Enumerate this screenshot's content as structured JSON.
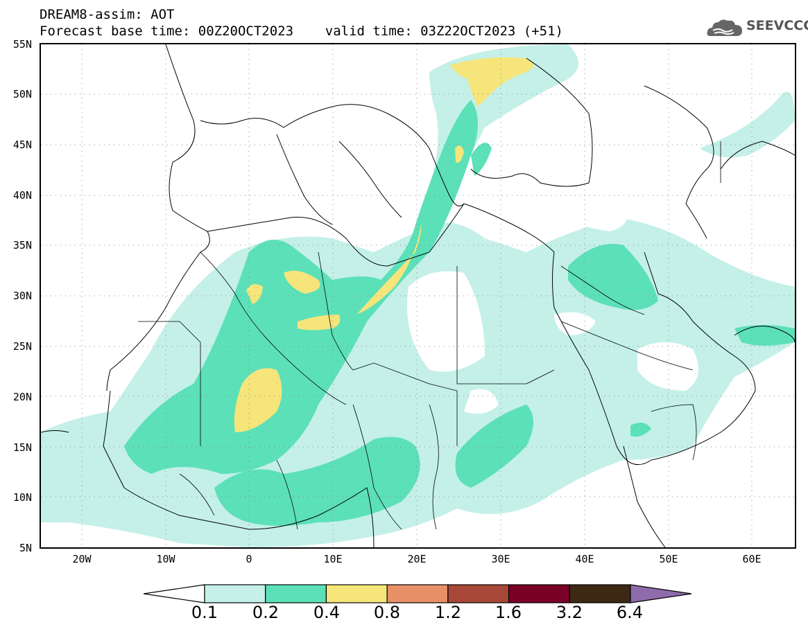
{
  "header": {
    "line1": "DREAM8-assim: AOT",
    "line2": "Forecast base time: 00Z20OCT2023    valid time: 03Z22OCT2023 (+51)"
  },
  "logo": {
    "text": "SEEVCCC",
    "icon": "cloud-logo-icon"
  },
  "map": {
    "projection": "lat-lon",
    "lon_range": [
      -25,
      65
    ],
    "lat_range": [
      5,
      55
    ],
    "lat_labels": [
      "55N",
      "50N",
      "45N",
      "40N",
      "35N",
      "30N",
      "25N",
      "20N",
      "15N",
      "10N",
      "5N"
    ],
    "lon_labels": [
      "20W",
      "10W",
      "0",
      "10E",
      "20E",
      "30E",
      "40E",
      "50E",
      "60E"
    ],
    "grid": "dotted"
  },
  "colorbar": {
    "levels": [
      "0.1",
      "0.2",
      "0.4",
      "0.8",
      "1.2",
      "1.6",
      "3.2",
      "6.4"
    ],
    "colors": [
      "#c4f0e8",
      "#5ce0b8",
      "#f5e57a",
      "#e89068",
      "#a84838",
      "#7a0028",
      "#3d2814",
      "#8e6cab"
    ]
  }
}
